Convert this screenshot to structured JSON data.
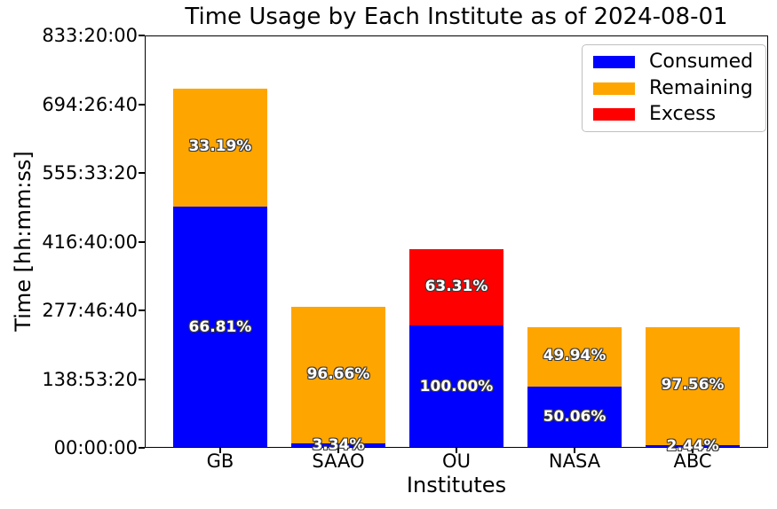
{
  "chart_data": {
    "type": "bar",
    "stacked": true,
    "title": "Time Usage by Each Institute as of 2024-08-01",
    "xlabel": "Institutes",
    "ylabel": "Time [hh:mm:ss]",
    "categories": [
      "GB",
      "SAAO",
      "OU",
      "NASA",
      "ABC"
    ],
    "ylim_seconds": [
      0,
      3000000
    ],
    "ytick_labels": [
      "00:00:00",
      "138:53:20",
      "277:46:40",
      "416:40:00",
      "555:33:20",
      "694:26:40",
      "833:20:00"
    ],
    "grid": false,
    "legend_position": "upper right",
    "series": [
      {
        "name": "Consumed",
        "color": "#0000ff",
        "values_seconds": [
          1755767,
          34629,
          892800,
          446936,
          21784
        ],
        "percent_labels": [
          "66.81%",
          "3.34%",
          "100.00%",
          "50.06%",
          "2.44%"
        ]
      },
      {
        "name": "Remaining",
        "color": "#ffa500",
        "values_seconds": [
          872233,
          1002171,
          0,
          445864,
          871016
        ],
        "percent_labels": [
          "33.19%",
          "96.66%",
          null,
          "49.94%",
          "97.56%"
        ]
      },
      {
        "name": "Excess",
        "color": "#ff0000",
        "values_seconds": [
          0,
          0,
          565232,
          0,
          0
        ],
        "percent_labels": [
          null,
          null,
          "63.31%",
          null,
          null
        ]
      }
    ],
    "bar_label_style": {
      "text_color": "#ffffff",
      "outline_color": "#3a3a3a",
      "bold": true
    }
  }
}
